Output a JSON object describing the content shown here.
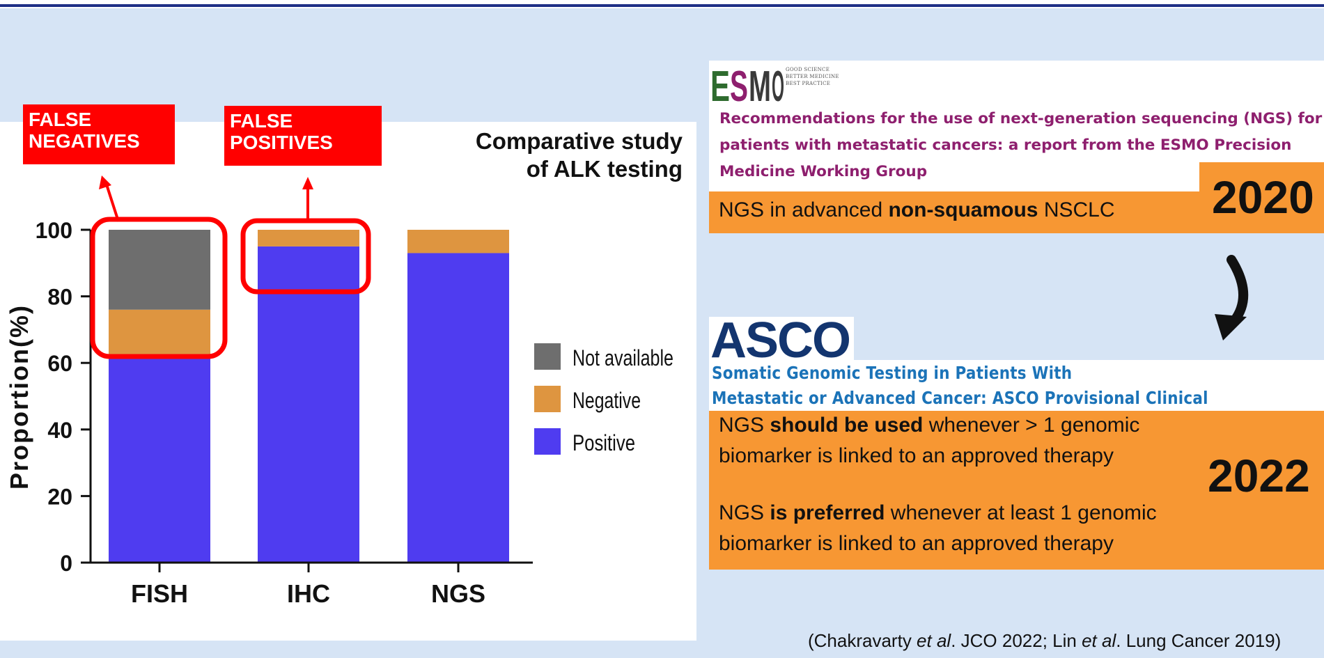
{
  "chart_data": {
    "type": "bar",
    "stacked": true,
    "title": "Comparative study of ALK testing",
    "categories": [
      "FISH",
      "IHC",
      "NGS"
    ],
    "ylabel": "Proportion(%)",
    "ylim": [
      0,
      100
    ],
    "yticks": [
      "0",
      "20",
      "40",
      "60",
      "80",
      "100"
    ],
    "series": [
      {
        "name": "Positive",
        "color": "#4f3cf0",
        "values": [
          62,
          95,
          93
        ]
      },
      {
        "name": "Negative",
        "color": "#de9540",
        "values": [
          14,
          5,
          7
        ]
      },
      {
        "name": "Not available",
        "color": "#6e6e6e",
        "values": [
          24,
          0,
          0
        ]
      }
    ],
    "legend": [
      "Not available",
      "Negative",
      "Positive"
    ],
    "legend_position": "right",
    "annotations": [
      "FALSE NEGATIVES",
      "FALSE POSITIVES"
    ]
  },
  "annotations": {
    "false_negatives": "FALSE\nNEGATIVES",
    "false_positives": "FALSE\nPOSITIVES"
  },
  "title_lines": {
    "line1": "Comparative study",
    "line2": "of ALK testing"
  },
  "esmo": {
    "logo": "ESMO",
    "tagline": "GOOD SCIENCE\nBETTER MEDICINE\nBEST PRACTICE",
    "recommendation": "Recommendations for the use of next-generation sequencing (NGS) for\npatients with metastatic cancers: a report from the ESMO Precision\nMedicine Working Group",
    "box_pre": "NGS in advanced ",
    "box_bold": "non-squamous",
    "box_post": " NSCLC",
    "year": "2020"
  },
  "asco": {
    "logo": "ASCO",
    "title": "Somatic Genomic Testing in Patients With\nMetastatic or Advanced Cancer: ASCO Provisional Clinical Opinion",
    "line1_pre": "NGS ",
    "line1_bold": "should be used",
    "line1_post": " whenever  > 1 genomic",
    "line2": "biomarker is linked to an approved therapy",
    "line3_pre": "NGS ",
    "line3_bold": "is preferred",
    "line3_post": " whenever at least 1 genomic",
    "line4": "biomarker is linked to an approved therapy",
    "year": "2022"
  },
  "citation": {
    "p1": "(Chakravarty ",
    "i1": "et al",
    "p2": ". JCO 2022; Lin ",
    "i2": "et al",
    "p3": ". Lung Cancer 2019)"
  },
  "colors": {
    "background": "#d6e4f5",
    "accent_orange": "#f79733",
    "highlight_red": "#ff0000",
    "esmo_purple": "#8e1f6e",
    "asco_blue": "#1b73b8"
  }
}
